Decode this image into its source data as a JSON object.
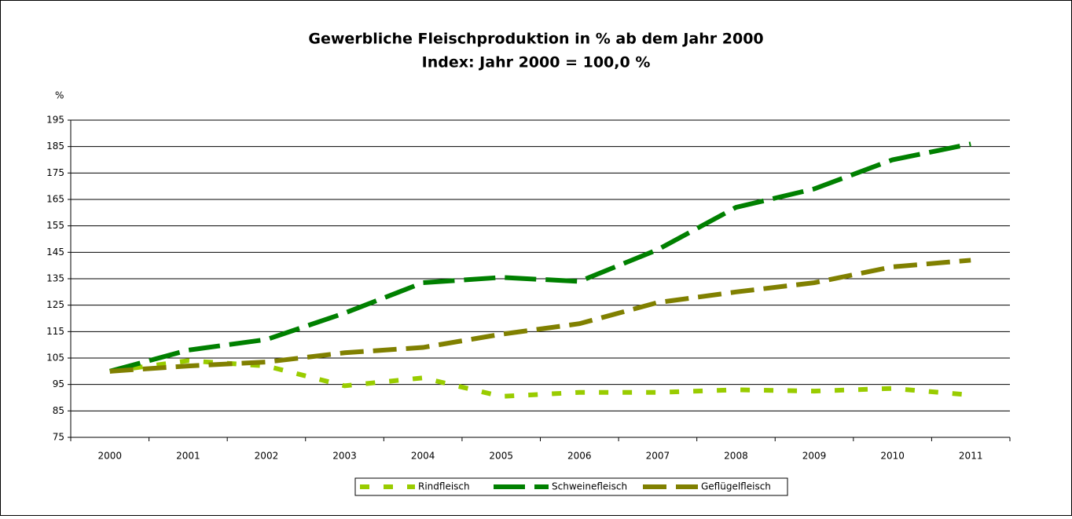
{
  "chart_data": {
    "type": "line",
    "title": "Gewerbliche Fleischproduktion in % ab dem Jahr 2000",
    "subtitle": "Index: Jahr 2000 = 100,0 %",
    "y_label": "%",
    "categories": [
      "2000",
      "2001",
      "2002",
      "2003",
      "2004",
      "2005",
      "2006",
      "2007",
      "2008",
      "2009",
      "2010",
      "2011"
    ],
    "series": [
      {
        "name": "Rindfleisch",
        "color": "#99cc00",
        "values": [
          100,
          104,
          102,
          94.5,
          97.5,
          90.5,
          92,
          92,
          93,
          92.5,
          93.5,
          91
        ]
      },
      {
        "name": "Schweinefleisch",
        "color": "#008000",
        "values": [
          100,
          108,
          112,
          122,
          133.5,
          135.5,
          134,
          146,
          162,
          169,
          180,
          186
        ]
      },
      {
        "name": "Geflügelfleisch",
        "color": "#808000",
        "values": [
          100,
          102,
          103.5,
          107,
          109,
          114,
          118,
          126,
          130,
          133.5,
          139.5,
          142
        ]
      }
    ],
    "ylim": [
      75,
      195
    ],
    "yticks": [
      75,
      85,
      95,
      105,
      115,
      125,
      135,
      145,
      155,
      165,
      175,
      185,
      195
    ],
    "grid": true,
    "legend": "bottom"
  }
}
